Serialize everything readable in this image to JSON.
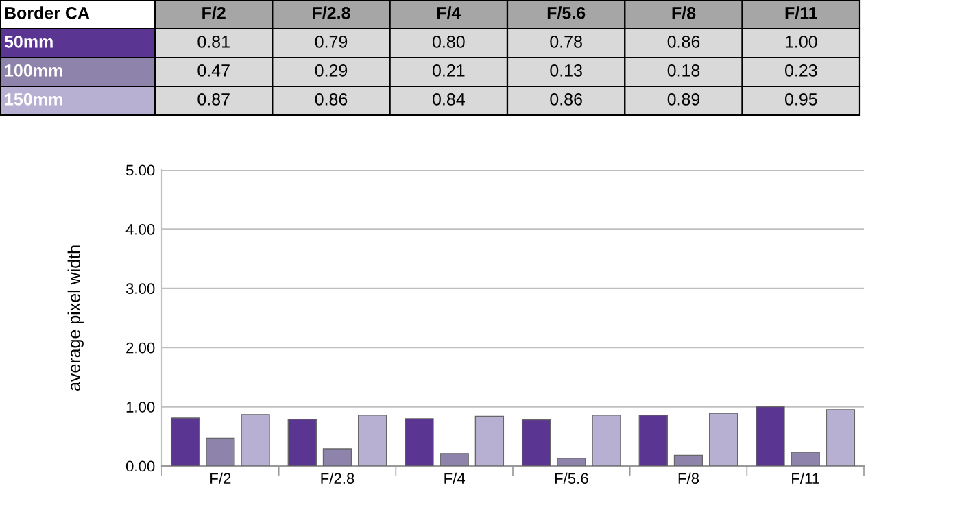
{
  "chart_data": {
    "type": "bar",
    "title": "Border CA",
    "ylabel": "average pixel width",
    "categories": [
      "F/2",
      "F/2.8",
      "F/4",
      "F/5.6",
      "F/8",
      "F/11"
    ],
    "series": [
      {
        "name": "50mm",
        "color": "#5b3592",
        "values": [
          0.81,
          0.79,
          0.8,
          0.78,
          0.86,
          1.0
        ],
        "value_labels": [
          "0.81",
          "0.79",
          "0.80",
          "0.78",
          "0.86",
          "1.00"
        ]
      },
      {
        "name": "100mm",
        "color": "#8e84ab",
        "values": [
          0.47,
          0.29,
          0.21,
          0.13,
          0.18,
          0.23
        ],
        "value_labels": [
          "0.47",
          "0.29",
          "0.21",
          "0.13",
          "0.18",
          "0.23"
        ]
      },
      {
        "name": "150mm",
        "color": "#b8b0d2",
        "values": [
          0.87,
          0.86,
          0.84,
          0.86,
          0.89,
          0.95
        ],
        "value_labels": [
          "0.87",
          "0.86",
          "0.84",
          "0.86",
          "0.89",
          "0.95"
        ]
      }
    ],
    "ylim": [
      0,
      5
    ],
    "yticks": [
      {
        "value": 0,
        "label": "0.00"
      },
      {
        "value": 1,
        "label": "1.00"
      },
      {
        "value": 2,
        "label": "2.00"
      },
      {
        "value": 3,
        "label": "3.00"
      },
      {
        "value": 4,
        "label": "4.00"
      },
      {
        "value": 5,
        "label": "5.00"
      }
    ],
    "grid": "y"
  }
}
